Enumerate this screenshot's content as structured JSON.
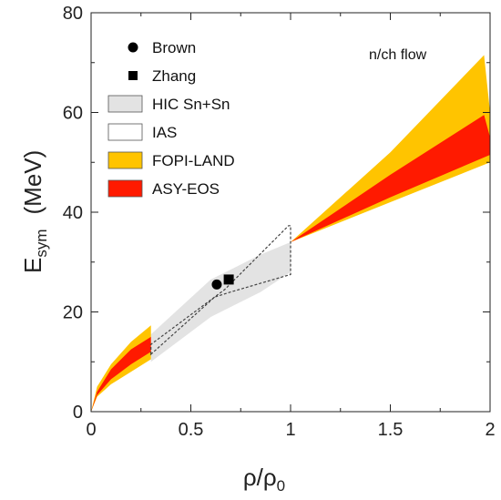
{
  "chart_data": {
    "type": "area",
    "xlabel": "ρ/ρ",
    "xlabel_sub": "0",
    "ylabel": "E",
    "ylabel_sub": "sym",
    "ylabel_unit": "(MeV)",
    "xlim": [
      0,
      2
    ],
    "ylim": [
      0,
      80
    ],
    "xticks": [
      "0",
      "0.5",
      "1",
      "1.5",
      "2"
    ],
    "yticks": [
      "0",
      "20",
      "40",
      "60",
      "80"
    ],
    "annotation": "n/ch flow",
    "legend_position": "top-left",
    "colors": {
      "hic": "#e3e3e3",
      "fopi": "#ffc400",
      "asy": "#ff1a00",
      "marker": "#000000",
      "ias_stroke": "#444444"
    },
    "legend": [
      {
        "label": "Brown",
        "marker": "circle"
      },
      {
        "label": "Zhang",
        "marker": "square"
      },
      {
        "label": "HIC Sn+Sn",
        "marker": "hic"
      },
      {
        "label": "IAS",
        "marker": "ias"
      },
      {
        "label": "FOPI-LAND",
        "marker": "fopi"
      },
      {
        "label": "ASY-EOS",
        "marker": "asy"
      }
    ],
    "points": [
      {
        "name": "Brown",
        "marker": "circle",
        "x": 0.63,
        "y": 25.5
      },
      {
        "name": "Zhang",
        "marker": "square",
        "x": 0.69,
        "y": 26.5
      }
    ],
    "bands": {
      "hic": {
        "upper": [
          [
            0.3,
            15.5
          ],
          [
            0.6,
            26.5
          ],
          [
            0.85,
            31.5
          ],
          [
            1.0,
            34.0
          ]
        ],
        "lower": [
          [
            0.3,
            10.0
          ],
          [
            0.6,
            19.0
          ],
          [
            0.85,
            24.0
          ],
          [
            1.0,
            28.0
          ]
        ]
      },
      "ias": [
        [
          0.3,
          11.5
        ],
        [
          0.3,
          13.5
        ],
        [
          0.67,
          24.5
        ],
        [
          0.99,
          37.3
        ],
        [
          1.0,
          37.3
        ],
        [
          1.0,
          27.5
        ],
        [
          0.7,
          24.0
        ],
        [
          0.62,
          23.0
        ]
      ],
      "fopi_low": {
        "upper": [
          [
            0.0,
            0.0
          ],
          [
            0.03,
            5.0
          ],
          [
            0.1,
            9.5
          ],
          [
            0.2,
            14.0
          ],
          [
            0.3,
            17.3
          ]
        ],
        "lower": [
          [
            0.0,
            0.0
          ],
          [
            0.03,
            3.0
          ],
          [
            0.1,
            5.5
          ],
          [
            0.2,
            8.0
          ],
          [
            0.3,
            10.5
          ]
        ]
      },
      "asy_low": {
        "upper": [
          [
            0.0,
            0.0
          ],
          [
            0.03,
            4.0
          ],
          [
            0.1,
            8.5
          ],
          [
            0.2,
            12.5
          ],
          [
            0.3,
            15.0
          ]
        ],
        "lower": [
          [
            0.0,
            0.0
          ],
          [
            0.03,
            3.3
          ],
          [
            0.1,
            6.5
          ],
          [
            0.2,
            9.5
          ],
          [
            0.3,
            12.0
          ]
        ]
      },
      "fopi_high": {
        "upper": [
          [
            1.0,
            34.0
          ],
          [
            1.5,
            52.0
          ],
          [
            1.97,
            71.5
          ],
          [
            2.0,
            60.0
          ]
        ],
        "lower": [
          [
            1.0,
            34.0
          ],
          [
            1.5,
            42.0
          ],
          [
            2.0,
            50.0
          ]
        ]
      },
      "asy_high": {
        "upper": [
          [
            1.0,
            34.0
          ],
          [
            1.5,
            47.5
          ],
          [
            1.97,
            59.5
          ],
          [
            2.0,
            55.0
          ]
        ],
        "lower": [
          [
            1.0,
            34.0
          ],
          [
            1.5,
            43.0
          ],
          [
            2.0,
            51.5
          ]
        ]
      }
    }
  }
}
